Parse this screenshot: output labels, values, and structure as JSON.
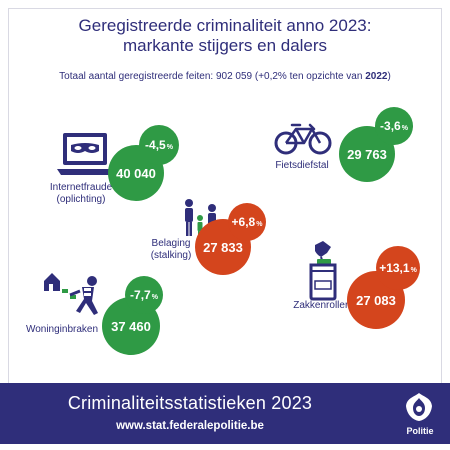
{
  "header": {
    "title_line1": "Geregistreerde criminaliteit anno 2023:",
    "title_line2": "markante stijgers en dalers",
    "subtitle_prefix": "Totaal aantal geregistreerde feiten: 902 059 (+0,2% ten opzichte van ",
    "subtitle_year": "2022",
    "subtitle_suffix": ")"
  },
  "stats": {
    "internetfraude": {
      "pct": "-4,5",
      "pct_unit": "%",
      "value": "40 040",
      "label_line1": "Internetfraude",
      "label_line2": "(oplichting)",
      "icon": "laptop-mask-icon",
      "color": "#2f9a45"
    },
    "fietsdiefstal": {
      "pct": "-3,6",
      "pct_unit": "%",
      "value": "29 763",
      "label_line1": "Fietsdiefstal",
      "icon": "bicycle-icon",
      "color": "#2f9a45"
    },
    "belaging": {
      "pct": "+6,8",
      "pct_unit": "%",
      "value": "27 833",
      "label_line1": "Belaging",
      "label_line2": "(stalking)",
      "icon": "stalker-icon",
      "color": "#d4451d"
    },
    "zakkenrollerij": {
      "pct": "+13,1",
      "pct_unit": "%",
      "value": "27 083",
      "label_line1": "Zakkenrollerij",
      "icon": "pickpocket-icon",
      "color": "#d4451d"
    },
    "woninginbraken": {
      "pct": "-7,7",
      "pct_unit": "%",
      "value": "37 460",
      "label_line1": "Woninginbraken",
      "icon": "burglar-icon",
      "color": "#2f9a45"
    }
  },
  "footer": {
    "title": "Criminaliteitsstatistieken 2023",
    "url": "www.stat.federalepolitie.be",
    "brand": "Politie",
    "background": "#2f2e7a"
  }
}
